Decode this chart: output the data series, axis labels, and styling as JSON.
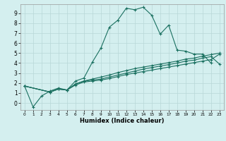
{
  "xlabel": "Humidex (Indice chaleur)",
  "bg_color": "#d4efef",
  "grid_color": "#b8d8d8",
  "line_color": "#1a7060",
  "xlim": [
    -0.5,
    23.5
  ],
  "ylim": [
    -0.7,
    9.9
  ],
  "xticks": [
    0,
    1,
    2,
    3,
    4,
    5,
    6,
    7,
    8,
    9,
    10,
    11,
    12,
    13,
    14,
    15,
    16,
    17,
    18,
    19,
    20,
    21,
    22,
    23
  ],
  "yticks": [
    0,
    1,
    2,
    3,
    4,
    5,
    6,
    7,
    8,
    9
  ],
  "line1_x": [
    0,
    1,
    2,
    3,
    4,
    5,
    6,
    7,
    8,
    9,
    10,
    11,
    12,
    13,
    14,
    15,
    16,
    17,
    18,
    19,
    20,
    21,
    22
  ],
  "line1_y": [
    1.7,
    -0.4,
    0.7,
    1.2,
    1.5,
    1.3,
    2.2,
    2.5,
    4.1,
    5.5,
    7.6,
    8.3,
    9.5,
    9.35,
    9.6,
    8.8,
    6.9,
    7.8,
    5.3,
    5.2,
    4.9,
    4.9,
    4.0
  ],
  "line2_x": [
    0,
    3,
    4,
    5,
    6,
    7,
    8,
    9,
    10,
    11,
    12,
    13,
    14,
    15,
    16,
    17,
    18,
    19,
    20,
    21,
    22,
    23
  ],
  "line2_y": [
    1.7,
    1.1,
    1.4,
    1.3,
    1.9,
    2.2,
    2.4,
    2.6,
    2.8,
    3.05,
    3.25,
    3.45,
    3.6,
    3.75,
    3.9,
    4.05,
    4.2,
    4.4,
    4.5,
    4.7,
    4.85,
    5.0
  ],
  "line3_x": [
    0,
    3,
    4,
    5,
    6,
    7,
    8,
    9,
    10,
    11,
    12,
    13,
    14,
    15,
    16,
    17,
    18,
    19,
    20,
    21,
    22,
    23
  ],
  "line3_y": [
    1.7,
    1.1,
    1.4,
    1.3,
    1.9,
    2.2,
    2.3,
    2.4,
    2.6,
    2.8,
    3.0,
    3.2,
    3.4,
    3.55,
    3.7,
    3.85,
    4.0,
    4.2,
    4.3,
    4.5,
    4.65,
    3.9
  ],
  "line4_x": [
    0,
    3,
    4,
    5,
    6,
    7,
    8,
    9,
    10,
    11,
    12,
    13,
    14,
    15,
    16,
    17,
    18,
    19,
    20,
    21,
    22,
    23
  ],
  "line4_y": [
    1.7,
    1.1,
    1.4,
    1.3,
    1.8,
    2.1,
    2.2,
    2.3,
    2.45,
    2.65,
    2.85,
    3.0,
    3.15,
    3.3,
    3.45,
    3.6,
    3.75,
    3.9,
    4.05,
    4.2,
    4.35,
    4.9
  ]
}
